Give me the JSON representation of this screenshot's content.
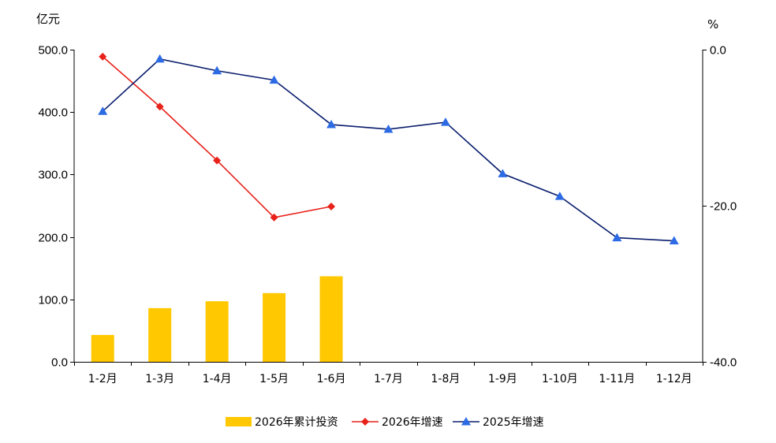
{
  "chart_data": {
    "type": "bar+line",
    "categories": [
      "1-2月",
      "1-3月",
      "1-4月",
      "1-5月",
      "1-6月",
      "1-7月",
      "1-8月",
      "1-9月",
      "1-10月",
      "1-11月",
      "1-12月"
    ],
    "left_axis": {
      "unit": "亿元",
      "range": [
        0,
        500
      ],
      "ticks": [
        0,
        100,
        200,
        300,
        400,
        500
      ],
      "tick_labels": [
        "0.0",
        "100.0",
        "200.0",
        "300.0",
        "400.0",
        "500.0"
      ]
    },
    "right_axis": {
      "unit": "%",
      "range": [
        -40,
        0
      ],
      "ticks": [
        0,
        -20,
        -40
      ],
      "tick_labels": [
        "0.0",
        "-20.0",
        "-40.0"
      ]
    },
    "series": [
      {
        "name": "2026年累计投资",
        "type": "bar",
        "axis": "left",
        "color": "#FFC800",
        "values": [
          43,
          86,
          97,
          110,
          137,
          null,
          null,
          null,
          null,
          null,
          null
        ]
      },
      {
        "name": "2026年增速",
        "type": "line",
        "axis": "right",
        "color": "#E8221B",
        "marker": "diamond",
        "values": [
          -0.9,
          -7.3,
          -14.2,
          -21.5,
          -20.1,
          null,
          null,
          null,
          null,
          null,
          null
        ]
      },
      {
        "name": "2025年增速",
        "type": "line",
        "axis": "right",
        "color": "#0A1E6E",
        "marker_color": "#2D6BE4",
        "marker": "triangle",
        "values": [
          -7.9,
          -1.2,
          -2.7,
          -3.9,
          -9.6,
          -10.2,
          -9.3,
          -15.9,
          -18.8,
          -24.1,
          -24.5
        ]
      }
    ],
    "grid": false,
    "legend_position": "bottom"
  }
}
